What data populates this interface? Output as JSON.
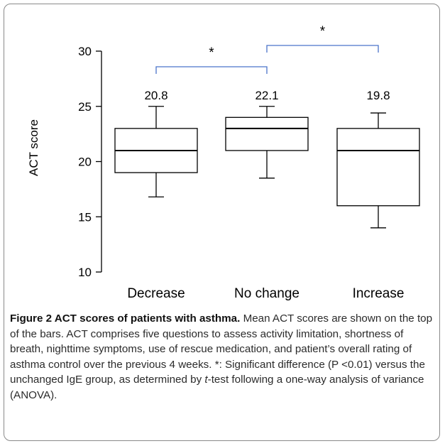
{
  "chart_data": {
    "type": "box",
    "ylabel": "ACT score",
    "xlabel": "",
    "ylim": [
      10,
      30
    ],
    "yticks": [
      10,
      15,
      20,
      25,
      30
    ],
    "categories": [
      "Decrease",
      "No change",
      "Increase"
    ],
    "boxes": [
      {
        "category": "Decrease",
        "whisker_low": 16.8,
        "q1": 19,
        "median": 21,
        "q3": 23,
        "whisker_high": 25,
        "mean_label": "20.8"
      },
      {
        "category": "No change",
        "whisker_low": 18.5,
        "q1": 21,
        "median": 23,
        "q3": 24,
        "whisker_high": 25,
        "mean_label": "22.1"
      },
      {
        "category": "Increase",
        "whisker_low": 14,
        "q1": 16,
        "median": 21,
        "q3": 23,
        "whisker_high": 24.4,
        "mean_label": "19.8"
      }
    ],
    "significance": [
      {
        "from": "Decrease",
        "to": "No change",
        "marker": "*"
      },
      {
        "from": "No change",
        "to": "Increase",
        "marker": "*"
      }
    ],
    "bracket_color": "#4a74c9"
  },
  "caption": {
    "title": "Figure 2 ACT scores of patients with asthma.",
    "text_before_italic": " Mean ACT scores are shown on the top of the bars. ACT comprises five questions to assess activity limitation, shortness of breath, nighttime symptoms, use of rescue medication, and patient’s overall rating of asthma control over the previous 4 weeks. *: Significant difference (P <0.01) versus the unchanged IgE group, as determined by ",
    "italic": "t",
    "text_after_italic": "-test following a one-way analysis of variance (ANOVA)."
  }
}
